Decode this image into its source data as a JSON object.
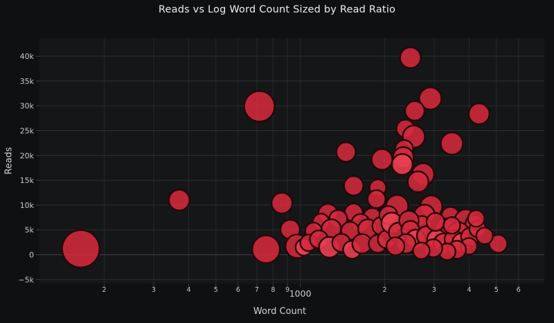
{
  "colors": {
    "background": "#0f1011",
    "plot_background": "#151617",
    "grid_vertical": "#24282b",
    "grid_horizontal": "#2c3136",
    "zero_line": "#3d4349",
    "tick_mark": "#3c4147",
    "tick_label": "#c9cacb",
    "axis_title": "#d3d4d5",
    "title": "#eceded"
  },
  "chart_data": {
    "type": "scatter",
    "subtype": "bubble",
    "title": "Reads vs Log Word Count Sized by Read Ratio",
    "xlabel": "Word Count",
    "ylabel": "Reads",
    "x_scale": "log",
    "x_log_range": [
      2.07,
      3.87
    ],
    "ylim": [
      -5800,
      43650
    ],
    "grid": true,
    "legend_position": "none",
    "x_ticks": [
      {
        "v": 200,
        "label": "2"
      },
      {
        "v": 300,
        "label": "3"
      },
      {
        "v": 400,
        "label": "4"
      },
      {
        "v": 500,
        "label": "5"
      },
      {
        "v": 600,
        "label": "6"
      },
      {
        "v": 700,
        "label": "7"
      },
      {
        "v": 800,
        "label": "8"
      },
      {
        "v": 900,
        "label": "9"
      },
      {
        "v": 1000,
        "label": "1000",
        "major": true
      },
      {
        "v": 2000,
        "label": "2"
      },
      {
        "v": 3000,
        "label": "3"
      },
      {
        "v": 4000,
        "label": "4"
      },
      {
        "v": 5000,
        "label": "5"
      },
      {
        "v": 6000,
        "label": "6"
      }
    ],
    "y_ticks": [
      {
        "v": -5000,
        "label": "−5k"
      },
      {
        "v": 0,
        "label": "0"
      },
      {
        "v": 5000,
        "label": "5k"
      },
      {
        "v": 10000,
        "label": "10k"
      },
      {
        "v": 15000,
        "label": "15k"
      },
      {
        "v": 20000,
        "label": "20k"
      },
      {
        "v": 25000,
        "label": "25k"
      },
      {
        "v": 30000,
        "label": "30k"
      },
      {
        "v": 35000,
        "label": "35k"
      },
      {
        "v": 40000,
        "label": "40k"
      }
    ],
    "marker": {
      "color": "#d42a3e",
      "bright_color": "#ee4154",
      "stroke": "#260709",
      "stroke_width": 2.4,
      "opacity": 0.88,
      "size_encodes": "read ratio"
    },
    "points_format": [
      "word_count",
      "reads",
      "marker_radius_px",
      "bright_flag"
    ],
    "points": [
      [
        165,
        1200,
        27
      ],
      [
        715,
        29900,
        22
      ],
      [
        370,
        11000,
        15
      ],
      [
        860,
        10400,
        15
      ],
      [
        920,
        5100,
        14
      ],
      [
        755,
        1100,
        20
      ],
      [
        975,
        1700,
        17
      ],
      [
        1030,
        1500,
        12,
        1
      ],
      [
        1455,
        20700,
        14
      ],
      [
        1955,
        19200,
        15
      ],
      [
        1550,
        13900,
        14
      ],
      [
        1890,
        13500,
        12
      ],
      [
        1870,
        11200,
        13
      ],
      [
        2470,
        39700,
        15
      ],
      [
        2910,
        31500,
        16
      ],
      [
        2560,
        29000,
        14
      ],
      [
        2370,
        25400,
        13
      ],
      [
        2540,
        23800,
        16
      ],
      [
        4340,
        28400,
        15
      ],
      [
        3470,
        22400,
        16
      ],
      [
        2345,
        21300,
        13
      ],
      [
        2330,
        19600,
        15
      ],
      [
        2310,
        18200,
        15,
        1
      ],
      [
        2740,
        16200,
        16
      ],
      [
        2630,
        14700,
        15
      ],
      [
        2215,
        9800,
        16
      ],
      [
        2930,
        9700,
        16
      ],
      [
        2770,
        8000,
        15
      ],
      [
        2710,
        5700,
        15
      ],
      [
        3430,
        7800,
        13
      ],
      [
        3890,
        6900,
        16
      ],
      [
        4180,
        6200,
        13
      ],
      [
        3300,
        5200,
        15
      ],
      [
        3660,
        4300,
        16
      ],
      [
        5080,
        2200,
        13
      ],
      [
        1255,
        8300,
        14
      ],
      [
        1550,
        8500,
        13
      ],
      [
        1805,
        7600,
        13
      ],
      [
        1185,
        6600,
        12
      ],
      [
        1365,
        7200,
        13
      ],
      [
        1640,
        6400,
        13
      ],
      [
        1115,
        4800,
        12
      ],
      [
        1290,
        5200,
        14
      ],
      [
        1505,
        4800,
        13
      ],
      [
        1740,
        5200,
        14
      ],
      [
        1945,
        5800,
        13
      ],
      [
        1070,
        2400,
        12
      ],
      [
        1165,
        3100,
        13
      ],
      [
        1270,
        1500,
        15,
        1
      ],
      [
        1400,
        2400,
        13
      ],
      [
        1530,
        1000,
        13,
        1
      ],
      [
        1660,
        2200,
        14
      ],
      [
        1890,
        2200,
        13
      ],
      [
        2035,
        3100,
        13
      ],
      [
        2060,
        8000,
        13
      ],
      [
        2120,
        6400,
        15,
        1
      ],
      [
        2240,
        4500,
        14
      ],
      [
        2440,
        6900,
        14
      ],
      [
        2470,
        5000,
        13
      ],
      [
        2580,
        3100,
        14,
        1
      ],
      [
        2380,
        2200,
        14
      ],
      [
        2185,
        1700,
        13
      ],
      [
        2820,
        3800,
        14
      ],
      [
        3070,
        3100,
        14,
        1
      ],
      [
        3035,
        6600,
        13
      ],
      [
        3250,
        2200,
        15
      ],
      [
        3520,
        3100,
        13
      ],
      [
        3470,
        5900,
        12
      ],
      [
        3770,
        2400,
        14,
        1
      ],
      [
        4030,
        3600,
        13
      ],
      [
        3990,
        1700,
        12
      ],
      [
        3620,
        1000,
        13
      ],
      [
        3340,
        600,
        12
      ],
      [
        2980,
        1300,
        13
      ],
      [
        2700,
        800,
        12
      ],
      [
        4290,
        5200,
        12
      ],
      [
        4540,
        3800,
        12
      ],
      [
        4240,
        7300,
        12
      ]
    ]
  }
}
